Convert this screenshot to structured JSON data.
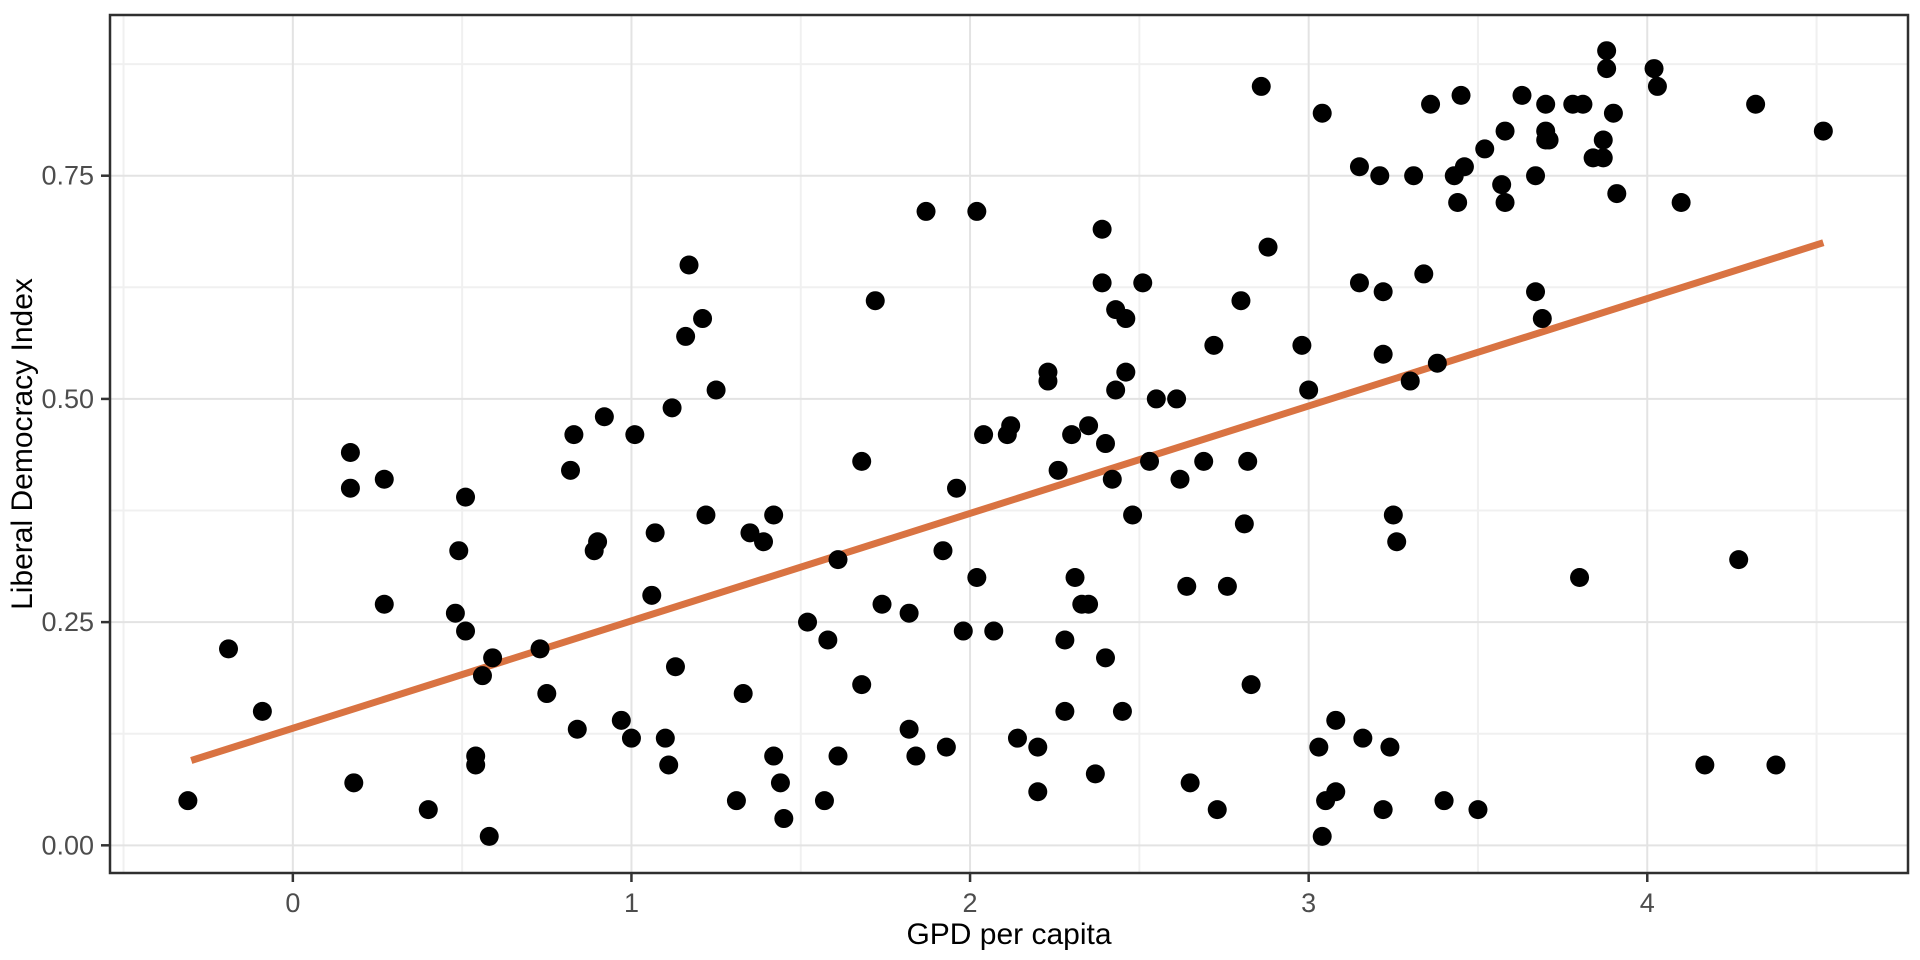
{
  "chart_data": {
    "type": "scatter",
    "title": "",
    "xlabel": "GPD per capita",
    "ylabel": "Liberal Democracy Index",
    "x_domain": [
      -0.54,
      4.77
    ],
    "y_domain": [
      -0.031,
      0.93
    ],
    "x_ticks": {
      "values": [
        0,
        1,
        2,
        3,
        4
      ],
      "labels": [
        "0",
        "1",
        "2",
        "3",
        "4"
      ]
    },
    "y_ticks": {
      "values": [
        0,
        0.25,
        0.5,
        0.75
      ],
      "labels": [
        "0.00",
        "0.25",
        "0.50",
        "0.75"
      ]
    },
    "x_minor": [
      -0.5,
      0.5,
      1.5,
      2.5,
      3.5,
      4.5
    ],
    "y_minor": [
      0.125,
      0.375,
      0.625,
      0.875
    ],
    "grid": true,
    "legend": "none",
    "point_color": "#000000",
    "trend_color": "#D97342",
    "trend_line": {
      "x1": -0.3,
      "y1": 0.095,
      "x2": 4.52,
      "y2": 0.675
    },
    "points": [
      [
        -0.31,
        0.05
      ],
      [
        -0.19,
        0.22
      ],
      [
        -0.09,
        0.15
      ],
      [
        0.17,
        0.44
      ],
      [
        0.17,
        0.4
      ],
      [
        0.18,
        0.07
      ],
      [
        0.27,
        0.41
      ],
      [
        0.27,
        0.27
      ],
      [
        0.4,
        0.04
      ],
      [
        0.48,
        0.26
      ],
      [
        0.49,
        0.33
      ],
      [
        0.51,
        0.39
      ],
      [
        0.51,
        0.24
      ],
      [
        0.54,
        0.1
      ],
      [
        0.54,
        0.09
      ],
      [
        0.56,
        0.19
      ],
      [
        0.58,
        0.01
      ],
      [
        0.59,
        0.21
      ],
      [
        0.73,
        0.22
      ],
      [
        0.75,
        0.17
      ],
      [
        0.82,
        0.42
      ],
      [
        0.83,
        0.46
      ],
      [
        0.84,
        0.13
      ],
      [
        0.89,
        0.33
      ],
      [
        0.9,
        0.34
      ],
      [
        0.92,
        0.48
      ],
      [
        0.97,
        0.14
      ],
      [
        1.0,
        0.12
      ],
      [
        1.01,
        0.46
      ],
      [
        1.06,
        0.28
      ],
      [
        1.07,
        0.35
      ],
      [
        1.1,
        0.12
      ],
      [
        1.11,
        0.09
      ],
      [
        1.12,
        0.49
      ],
      [
        1.13,
        0.2
      ],
      [
        1.16,
        0.57
      ],
      [
        1.17,
        0.65
      ],
      [
        1.21,
        0.59
      ],
      [
        1.22,
        0.37
      ],
      [
        1.25,
        0.51
      ],
      [
        1.31,
        0.05
      ],
      [
        1.33,
        0.17
      ],
      [
        1.35,
        0.35
      ],
      [
        1.39,
        0.34
      ],
      [
        1.42,
        0.37
      ],
      [
        1.42,
        0.1
      ],
      [
        1.44,
        0.07
      ],
      [
        1.45,
        0.03
      ],
      [
        1.52,
        0.25
      ],
      [
        1.57,
        0.05
      ],
      [
        1.58,
        0.23
      ],
      [
        1.61,
        0.32
      ],
      [
        1.61,
        0.1
      ],
      [
        1.68,
        0.43
      ],
      [
        1.68,
        0.18
      ],
      [
        1.72,
        0.61
      ],
      [
        1.74,
        0.27
      ],
      [
        1.82,
        0.26
      ],
      [
        1.82,
        0.13
      ],
      [
        1.84,
        0.1
      ],
      [
        1.87,
        0.71
      ],
      [
        1.92,
        0.33
      ],
      [
        1.93,
        0.11
      ],
      [
        1.96,
        0.4
      ],
      [
        1.98,
        0.24
      ],
      [
        2.02,
        0.71
      ],
      [
        2.02,
        0.3
      ],
      [
        2.04,
        0.46
      ],
      [
        2.07,
        0.24
      ],
      [
        2.11,
        0.46
      ],
      [
        2.12,
        0.47
      ],
      [
        2.14,
        0.12
      ],
      [
        2.2,
        0.11
      ],
      [
        2.2,
        0.06
      ],
      [
        2.23,
        0.53
      ],
      [
        2.23,
        0.52
      ],
      [
        2.26,
        0.42
      ],
      [
        2.28,
        0.23
      ],
      [
        2.28,
        0.15
      ],
      [
        2.3,
        0.46
      ],
      [
        2.31,
        0.3
      ],
      [
        2.33,
        0.27
      ],
      [
        2.35,
        0.47
      ],
      [
        2.35,
        0.27
      ],
      [
        2.37,
        0.08
      ],
      [
        2.39,
        0.69
      ],
      [
        2.39,
        0.63
      ],
      [
        2.4,
        0.45
      ],
      [
        2.4,
        0.21
      ],
      [
        2.42,
        0.41
      ],
      [
        2.43,
        0.6
      ],
      [
        2.43,
        0.51
      ],
      [
        2.45,
        0.15
      ],
      [
        2.46,
        0.59
      ],
      [
        2.46,
        0.53
      ],
      [
        2.48,
        0.37
      ],
      [
        2.51,
        0.63
      ],
      [
        2.53,
        0.43
      ],
      [
        2.55,
        0.5
      ],
      [
        2.61,
        0.5
      ],
      [
        2.62,
        0.41
      ],
      [
        2.64,
        0.29
      ],
      [
        2.65,
        0.07
      ],
      [
        2.69,
        0.43
      ],
      [
        2.72,
        0.56
      ],
      [
        2.73,
        0.04
      ],
      [
        2.76,
        0.29
      ],
      [
        2.8,
        0.61
      ],
      [
        2.81,
        0.36
      ],
      [
        2.82,
        0.43
      ],
      [
        2.83,
        0.18
      ],
      [
        2.86,
        0.85
      ],
      [
        2.88,
        0.67
      ],
      [
        2.98,
        0.56
      ],
      [
        3.0,
        0.51
      ],
      [
        3.03,
        0.11
      ],
      [
        3.04,
        0.82
      ],
      [
        3.04,
        0.01
      ],
      [
        3.05,
        0.05
      ],
      [
        3.08,
        0.14
      ],
      [
        3.08,
        0.06
      ],
      [
        3.15,
        0.76
      ],
      [
        3.15,
        0.63
      ],
      [
        3.16,
        0.12
      ],
      [
        3.21,
        0.75
      ],
      [
        3.22,
        0.62
      ],
      [
        3.22,
        0.55
      ],
      [
        3.22,
        0.04
      ],
      [
        3.24,
        0.11
      ],
      [
        3.25,
        0.37
      ],
      [
        3.26,
        0.34
      ],
      [
        3.3,
        0.52
      ],
      [
        3.31,
        0.75
      ],
      [
        3.34,
        0.64
      ],
      [
        3.36,
        0.83
      ],
      [
        3.38,
        0.54
      ],
      [
        3.4,
        0.05
      ],
      [
        3.43,
        0.75
      ],
      [
        3.44,
        0.72
      ],
      [
        3.45,
        0.84
      ],
      [
        3.46,
        0.76
      ],
      [
        3.5,
        0.04
      ],
      [
        3.52,
        0.78
      ],
      [
        3.57,
        0.74
      ],
      [
        3.58,
        0.8
      ],
      [
        3.58,
        0.72
      ],
      [
        3.63,
        0.84
      ],
      [
        3.67,
        0.75
      ],
      [
        3.67,
        0.62
      ],
      [
        3.69,
        0.59
      ],
      [
        3.7,
        0.83
      ],
      [
        3.7,
        0.8
      ],
      [
        3.7,
        0.79
      ],
      [
        3.71,
        0.79
      ],
      [
        3.78,
        0.83
      ],
      [
        3.8,
        0.3
      ],
      [
        3.81,
        0.83
      ],
      [
        3.84,
        0.77
      ],
      [
        3.87,
        0.79
      ],
      [
        3.87,
        0.77
      ],
      [
        3.88,
        0.89
      ],
      [
        3.88,
        0.87
      ],
      [
        3.9,
        0.82
      ],
      [
        3.91,
        0.73
      ],
      [
        4.02,
        0.87
      ],
      [
        4.03,
        0.85
      ],
      [
        4.1,
        0.72
      ],
      [
        4.17,
        0.09
      ],
      [
        4.27,
        0.32
      ],
      [
        4.32,
        0.83
      ],
      [
        4.38,
        0.09
      ],
      [
        4.52,
        0.8
      ]
    ]
  },
  "colors": {
    "background": "#FFFFFF",
    "panel_background": "#FFFFFF",
    "panel_border": "#2F2F2F",
    "grid_major": "#E3E3E3",
    "grid_minor": "#F0F0F0",
    "tick_mark": "#333333",
    "tick_label": "#4D4D4D",
    "axis_title": "#000000",
    "point": "#000000",
    "trend": "#D97342"
  }
}
